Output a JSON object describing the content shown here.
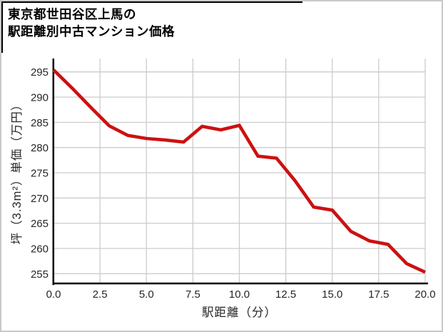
{
  "title": {
    "line1": "東京都世田谷区上馬の",
    "line2": "駅距離別中古マンション価格"
  },
  "chart_data": {
    "type": "line",
    "title": "東京都世田谷区上馬の駅距離別中古マンション価格",
    "xlabel": "駅距離（分）",
    "ylabel": "坪（3.3m²）単価（万円）",
    "x": [
      0,
      1,
      2,
      3,
      4,
      5,
      6,
      7,
      8,
      9,
      10,
      11,
      12,
      13,
      14,
      15,
      16,
      17,
      18,
      19,
      20
    ],
    "values": [
      295.4,
      291.8,
      288.0,
      284.3,
      282.4,
      281.8,
      281.5,
      281.1,
      284.2,
      283.5,
      284.4,
      278.3,
      277.9,
      273.4,
      268.2,
      267.6,
      263.4,
      261.5,
      260.8,
      257.0,
      255.3
    ],
    "x_ticks": [
      {
        "v": 0,
        "label": "0.0"
      },
      {
        "v": 2.5,
        "label": "2.5"
      },
      {
        "v": 5,
        "label": "5.0"
      },
      {
        "v": 7.5,
        "label": "7.5"
      },
      {
        "v": 10,
        "label": "10.0"
      },
      {
        "v": 12.5,
        "label": "12.5"
      },
      {
        "v": 15,
        "label": "15.0"
      },
      {
        "v": 17.5,
        "label": "17.5"
      },
      {
        "v": 20,
        "label": "20.0"
      }
    ],
    "y_ticks": [
      {
        "v": 255,
        "label": "255"
      },
      {
        "v": 260,
        "label": "260"
      },
      {
        "v": 265,
        "label": "265"
      },
      {
        "v": 270,
        "label": "270"
      },
      {
        "v": 275,
        "label": "275"
      },
      {
        "v": 280,
        "label": "280"
      },
      {
        "v": 285,
        "label": "285"
      },
      {
        "v": 290,
        "label": "290"
      },
      {
        "v": 295,
        "label": "295"
      }
    ],
    "xlim": [
      0,
      20
    ],
    "ylim": [
      252.9,
      297.4
    ],
    "grid": true,
    "legend": null
  },
  "colors": {
    "line": "#cc1111",
    "grid": "#cccccc",
    "axis": "#000000",
    "tick_text": "#262626",
    "title_text": "#000000",
    "accent_border": "#000000",
    "frame_border": "#c9c9c9"
  }
}
